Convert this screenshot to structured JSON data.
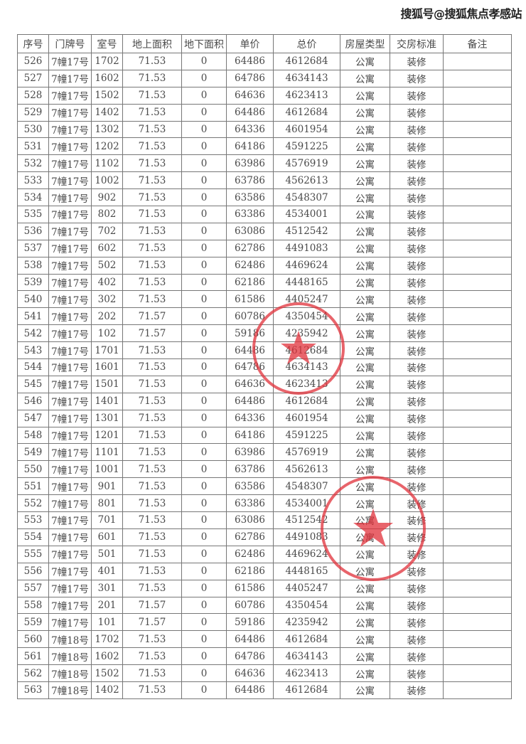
{
  "watermark": "搜狐号@搜狐焦点孝感站",
  "table": {
    "headers": [
      "序号",
      "门牌号",
      "室号",
      "地上面积",
      "地下面积",
      "单价",
      "总价",
      "房屋类型",
      "交房标准",
      "备注"
    ],
    "rows": [
      [
        "526",
        "7幢17号",
        "1702",
        "71.53",
        "0",
        "64486",
        "4612684",
        "公寓",
        "装修",
        ""
      ],
      [
        "527",
        "7幢17号",
        "1602",
        "71.53",
        "0",
        "64786",
        "4634143",
        "公寓",
        "装修",
        ""
      ],
      [
        "528",
        "7幢17号",
        "1502",
        "71.53",
        "0",
        "64636",
        "4623413",
        "公寓",
        "装修",
        ""
      ],
      [
        "529",
        "7幢17号",
        "1402",
        "71.53",
        "0",
        "64486",
        "4612684",
        "公寓",
        "装修",
        ""
      ],
      [
        "530",
        "7幢17号",
        "1302",
        "71.53",
        "0",
        "64336",
        "4601954",
        "公寓",
        "装修",
        ""
      ],
      [
        "531",
        "7幢17号",
        "1202",
        "71.53",
        "0",
        "64186",
        "4591225",
        "公寓",
        "装修",
        ""
      ],
      [
        "532",
        "7幢17号",
        "1102",
        "71.53",
        "0",
        "63986",
        "4576919",
        "公寓",
        "装修",
        ""
      ],
      [
        "533",
        "7幢17号",
        "1002",
        "71.53",
        "0",
        "63786",
        "4562613",
        "公寓",
        "装修",
        ""
      ],
      [
        "534",
        "7幢17号",
        "902",
        "71.53",
        "0",
        "63586",
        "4548307",
        "公寓",
        "装修",
        ""
      ],
      [
        "535",
        "7幢17号",
        "802",
        "71.53",
        "0",
        "63386",
        "4534001",
        "公寓",
        "装修",
        ""
      ],
      [
        "536",
        "7幢17号",
        "702",
        "71.53",
        "0",
        "63086",
        "4512542",
        "公寓",
        "装修",
        ""
      ],
      [
        "537",
        "7幢17号",
        "602",
        "71.53",
        "0",
        "62786",
        "4491083",
        "公寓",
        "装修",
        ""
      ],
      [
        "538",
        "7幢17号",
        "502",
        "71.53",
        "0",
        "62486",
        "4469624",
        "公寓",
        "装修",
        ""
      ],
      [
        "539",
        "7幢17号",
        "402",
        "71.53",
        "0",
        "62186",
        "4448165",
        "公寓",
        "装修",
        ""
      ],
      [
        "540",
        "7幢17号",
        "302",
        "71.53",
        "0",
        "61586",
        "4405247",
        "公寓",
        "装修",
        ""
      ],
      [
        "541",
        "7幢17号",
        "202",
        "71.57",
        "0",
        "60786",
        "4350454",
        "公寓",
        "装修",
        ""
      ],
      [
        "542",
        "7幢17号",
        "102",
        "71.57",
        "0",
        "59186",
        "4235942",
        "公寓",
        "装修",
        ""
      ],
      [
        "543",
        "7幢17号",
        "1701",
        "71.53",
        "0",
        "64486",
        "4612684",
        "公寓",
        "装修",
        ""
      ],
      [
        "544",
        "7幢17号",
        "1601",
        "71.53",
        "0",
        "64786",
        "4634143",
        "公寓",
        "装修",
        ""
      ],
      [
        "545",
        "7幢17号",
        "1501",
        "71.53",
        "0",
        "64636",
        "4623413",
        "公寓",
        "装修",
        ""
      ],
      [
        "546",
        "7幢17号",
        "1401",
        "71.53",
        "0",
        "64486",
        "4612684",
        "公寓",
        "装修",
        ""
      ],
      [
        "547",
        "7幢17号",
        "1301",
        "71.53",
        "0",
        "64336",
        "4601954",
        "公寓",
        "装修",
        ""
      ],
      [
        "548",
        "7幢17号",
        "1201",
        "71.53",
        "0",
        "64186",
        "4591225",
        "公寓",
        "装修",
        ""
      ],
      [
        "549",
        "7幢17号",
        "1101",
        "71.53",
        "0",
        "63986",
        "4576919",
        "公寓",
        "装修",
        ""
      ],
      [
        "550",
        "7幢17号",
        "1001",
        "71.53",
        "0",
        "63786",
        "4562613",
        "公寓",
        "装修",
        ""
      ],
      [
        "551",
        "7幢17号",
        "901",
        "71.53",
        "0",
        "63586",
        "4548307",
        "公寓",
        "装修",
        ""
      ],
      [
        "552",
        "7幢17号",
        "801",
        "71.53",
        "0",
        "63386",
        "4534001",
        "公寓",
        "装修",
        ""
      ],
      [
        "553",
        "7幢17号",
        "701",
        "71.53",
        "0",
        "63086",
        "4512542",
        "公寓",
        "装修",
        ""
      ],
      [
        "554",
        "7幢17号",
        "601",
        "71.53",
        "0",
        "62786",
        "4491083",
        "公寓",
        "装修",
        ""
      ],
      [
        "555",
        "7幢17号",
        "501",
        "71.53",
        "0",
        "62486",
        "4469624",
        "公寓",
        "装修",
        ""
      ],
      [
        "556",
        "7幢17号",
        "401",
        "71.53",
        "0",
        "62186",
        "4448165",
        "公寓",
        "装修",
        ""
      ],
      [
        "557",
        "7幢17号",
        "301",
        "71.53",
        "0",
        "61586",
        "4405247",
        "公寓",
        "装修",
        ""
      ],
      [
        "558",
        "7幢17号",
        "201",
        "71.57",
        "0",
        "60786",
        "4350454",
        "公寓",
        "装修",
        ""
      ],
      [
        "559",
        "7幢17号",
        "101",
        "71.57",
        "0",
        "59186",
        "4235942",
        "公寓",
        "装修",
        ""
      ],
      [
        "560",
        "7幢18号",
        "1702",
        "71.53",
        "0",
        "64486",
        "4612684",
        "公寓",
        "装修",
        ""
      ],
      [
        "561",
        "7幢18号",
        "1602",
        "71.53",
        "0",
        "64786",
        "4634143",
        "公寓",
        "装修",
        ""
      ],
      [
        "562",
        "7幢18号",
        "1502",
        "71.53",
        "0",
        "64636",
        "4623413",
        "公寓",
        "装修",
        ""
      ],
      [
        "563",
        "7幢18号",
        "1402",
        "71.53",
        "0",
        "64486",
        "4612684",
        "公寓",
        "装修",
        ""
      ]
    ]
  },
  "stamps": {
    "color": "#e0303a"
  }
}
